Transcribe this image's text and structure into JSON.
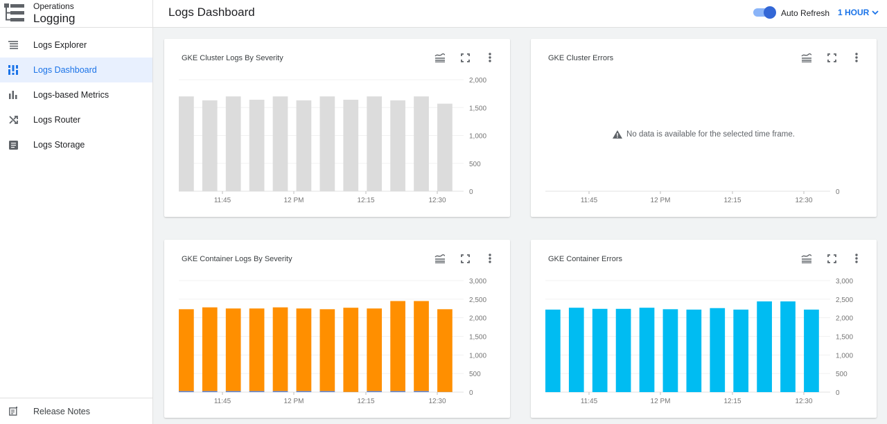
{
  "sidebar": {
    "product_super": "Operations",
    "product_name": "Logging",
    "items": [
      {
        "label": "Logs Explorer",
        "icon": "list-icon",
        "active": false
      },
      {
        "label": "Logs Dashboard",
        "icon": "dashboard-icon",
        "active": true
      },
      {
        "label": "Logs-based Metrics",
        "icon": "bar-chart-icon",
        "active": false
      },
      {
        "label": "Logs Router",
        "icon": "shuffle-icon",
        "active": false
      },
      {
        "label": "Logs Storage",
        "icon": "storage-icon",
        "active": false
      }
    ],
    "release_notes": "Release Notes"
  },
  "header": {
    "title": "Logs Dashboard",
    "auto_refresh_label": "Auto Refresh",
    "auto_refresh_on": true,
    "time_range": "1 HOUR"
  },
  "colors": {
    "accent": "#1a73e8",
    "gray_bar": "#dcdcdc",
    "orange": "#ff8f00",
    "cyan": "#00bcf2",
    "blue_segment": "#5c85d6"
  },
  "chart_data": [
    {
      "title": "GKE Cluster Logs By Severity",
      "type": "bar",
      "x_ticks": [
        "11:45",
        "12 PM",
        "12:15",
        "12:30"
      ],
      "y_ticks": [
        "2,000",
        "1,500",
        "1,000",
        "500",
        "0"
      ],
      "ylim": [
        0,
        2000
      ],
      "series": [
        {
          "color": "#dcdcdc",
          "values": [
            1700,
            1630,
            1700,
            1640,
            1700,
            1630,
            1700,
            1640,
            1700,
            1630,
            1700,
            1570
          ]
        }
      ]
    },
    {
      "title": "GKE Cluster Errors",
      "type": "bar",
      "x_ticks": [
        "11:45",
        "12 PM",
        "12:15",
        "12:30"
      ],
      "y_ticks": [
        "0"
      ],
      "no_data_message": "No data is available for the selected time frame.",
      "series": []
    },
    {
      "title": "GKE Container Logs By Severity",
      "type": "bar",
      "stacked": true,
      "x_ticks": [
        "11:45",
        "12 PM",
        "12:15",
        "12:30"
      ],
      "y_ticks": [
        "3,000",
        "2,500",
        "2,000",
        "1,500",
        "1,000",
        "500",
        "0"
      ],
      "ylim": [
        0,
        3000
      ],
      "series": [
        {
          "color": "#5c85d6",
          "values": [
            30,
            30,
            30,
            30,
            30,
            30,
            30,
            5,
            30,
            30,
            30,
            5
          ]
        },
        {
          "color": "#ff8f00",
          "values": [
            2200,
            2250,
            2220,
            2220,
            2250,
            2220,
            2200,
            2265,
            2220,
            2420,
            2420,
            2225
          ]
        }
      ]
    },
    {
      "title": "GKE Container Errors",
      "type": "bar",
      "x_ticks": [
        "11:45",
        "12 PM",
        "12:15",
        "12:30"
      ],
      "y_ticks": [
        "3,000",
        "2,500",
        "2,000",
        "1,500",
        "1,000",
        "500",
        "0"
      ],
      "ylim": [
        0,
        3000
      ],
      "series": [
        {
          "color": "#00bcf2",
          "values": [
            2220,
            2270,
            2240,
            2240,
            2270,
            2230,
            2220,
            2260,
            2220,
            2440,
            2440,
            2220
          ]
        }
      ]
    }
  ]
}
